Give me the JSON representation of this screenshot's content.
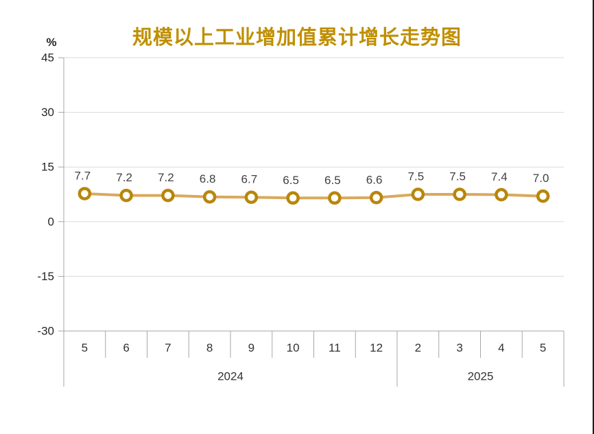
{
  "window": {
    "right_border_color": "#1c1c1c",
    "background": "#ffffff"
  },
  "chart_data": {
    "type": "line",
    "title": "规模以上工业增加值累计增长走势图",
    "ylabel": "%",
    "categories": [
      "5",
      "6",
      "7",
      "8",
      "9",
      "10",
      "11",
      "12",
      "2",
      "3",
      "4",
      "5"
    ],
    "year_groups": [
      {
        "label": "2024",
        "count": 8
      },
      {
        "label": "2025",
        "count": 4
      }
    ],
    "values": [
      7.7,
      7.2,
      7.2,
      6.8,
      6.7,
      6.5,
      6.5,
      6.6,
      7.5,
      7.5,
      7.4,
      7.0
    ],
    "ylim": [
      -30,
      45
    ],
    "yticks": [
      45,
      30,
      15,
      0,
      -15,
      -30
    ],
    "grid": true,
    "legend_position": "none",
    "colors": {
      "title": "#BF8F00",
      "line": "#D9A95C",
      "marker_ring": "#B8860B",
      "marker_fill": "#FFFFFF",
      "gridline": "#D9D9D9",
      "axis": "#A6A6A6",
      "tick_label": "#262626",
      "data_label": "#404040",
      "category_label": "#333333"
    }
  }
}
